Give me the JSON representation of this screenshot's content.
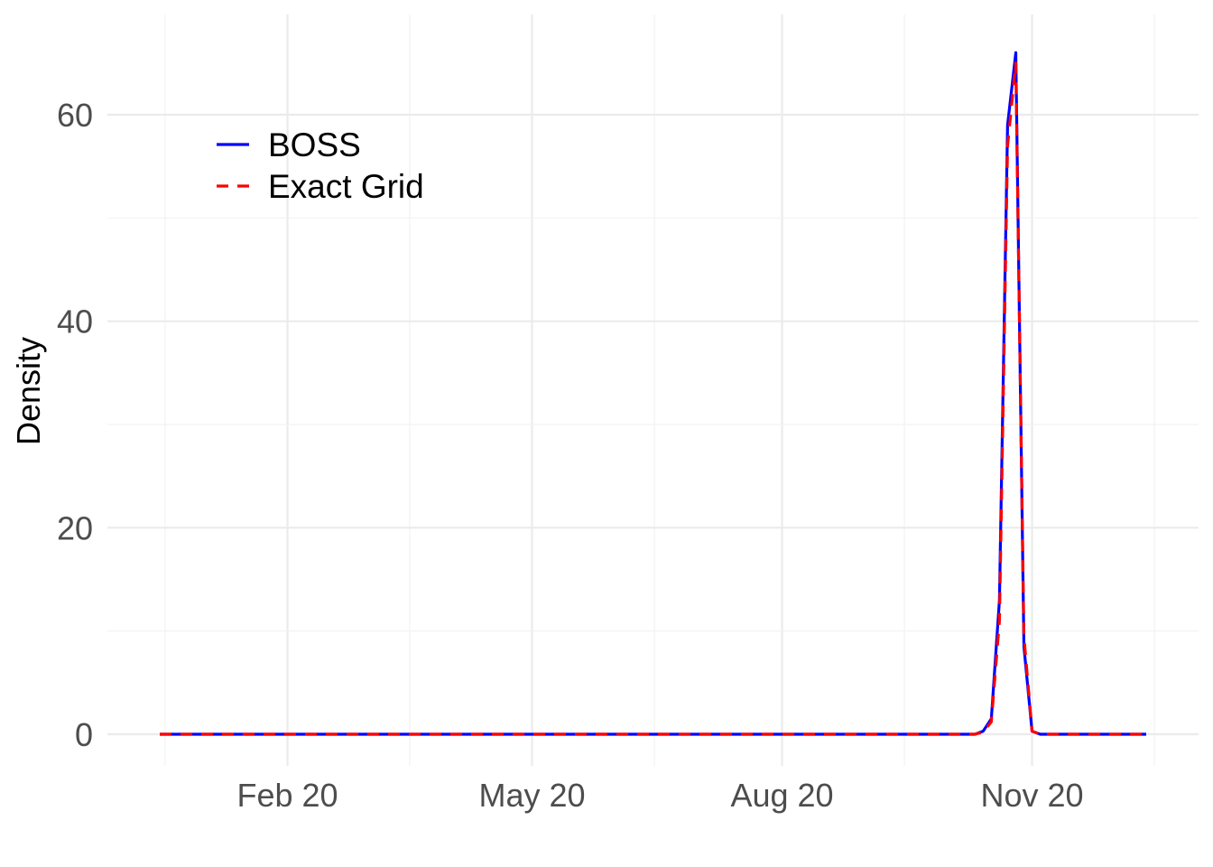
{
  "chart_data": {
    "type": "line",
    "title": "",
    "xlabel": "",
    "ylabel": "Density",
    "x_axis_kind": "date",
    "xlim": [
      "2020-01-04",
      "2021-01-01"
    ],
    "ylim": [
      -3,
      70
    ],
    "x_ticks": [
      {
        "date": "2020-02-20",
        "label": "Feb 20"
      },
      {
        "date": "2020-05-20",
        "label": "May 20"
      },
      {
        "date": "2020-08-20",
        "label": "Aug 20"
      },
      {
        "date": "2020-11-20",
        "label": "Nov 20"
      }
    ],
    "y_ticks": [
      0,
      20,
      40,
      60
    ],
    "grid": true,
    "legend_position": "top-left",
    "series": [
      {
        "name": "BOSS",
        "color": "#0000ff",
        "line_style": "solid",
        "points": [
          [
            "2020-01-04",
            0
          ],
          [
            "2020-10-26",
            0
          ],
          [
            "2020-10-30",
            0
          ],
          [
            "2020-11-02",
            0.3
          ],
          [
            "2020-11-05",
            1.5
          ],
          [
            "2020-11-08",
            13
          ],
          [
            "2020-11-11",
            59
          ],
          [
            "2020-11-14",
            66
          ],
          [
            "2020-11-17",
            8.5
          ],
          [
            "2020-11-20",
            0.3
          ],
          [
            "2020-11-23",
            0
          ],
          [
            "2021-01-01",
            0
          ]
        ]
      },
      {
        "name": "Exact Grid",
        "color": "#ff0000",
        "line_style": "dashed",
        "points": [
          [
            "2020-01-04",
            0
          ],
          [
            "2020-10-26",
            0
          ],
          [
            "2020-10-30",
            0
          ],
          [
            "2020-11-02",
            0.2
          ],
          [
            "2020-11-05",
            1.2
          ],
          [
            "2020-11-08",
            11
          ],
          [
            "2020-11-11",
            57
          ],
          [
            "2020-11-14",
            65
          ],
          [
            "2020-11-17",
            9.5
          ],
          [
            "2020-11-20",
            0.3
          ],
          [
            "2020-11-23",
            0
          ],
          [
            "2021-01-01",
            0
          ]
        ]
      }
    ]
  }
}
